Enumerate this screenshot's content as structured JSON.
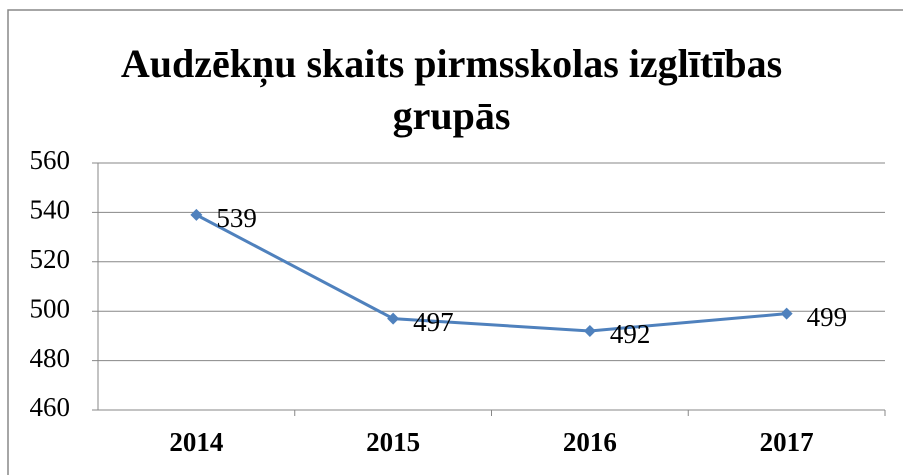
{
  "chart_data": {
    "type": "line",
    "title": "Audzēkņu skaits pirmsskolas izglītības grupās",
    "categories": [
      "2014",
      "2015",
      "2016",
      "2017"
    ],
    "series": [
      {
        "name": "Audzēkņu skaits",
        "color": "#4f81bd",
        "values": [
          539,
          497,
          492,
          499
        ]
      }
    ],
    "ylim": [
      460,
      560
    ],
    "yticks": [
      460,
      480,
      500,
      520,
      540,
      560
    ],
    "grid": true
  }
}
